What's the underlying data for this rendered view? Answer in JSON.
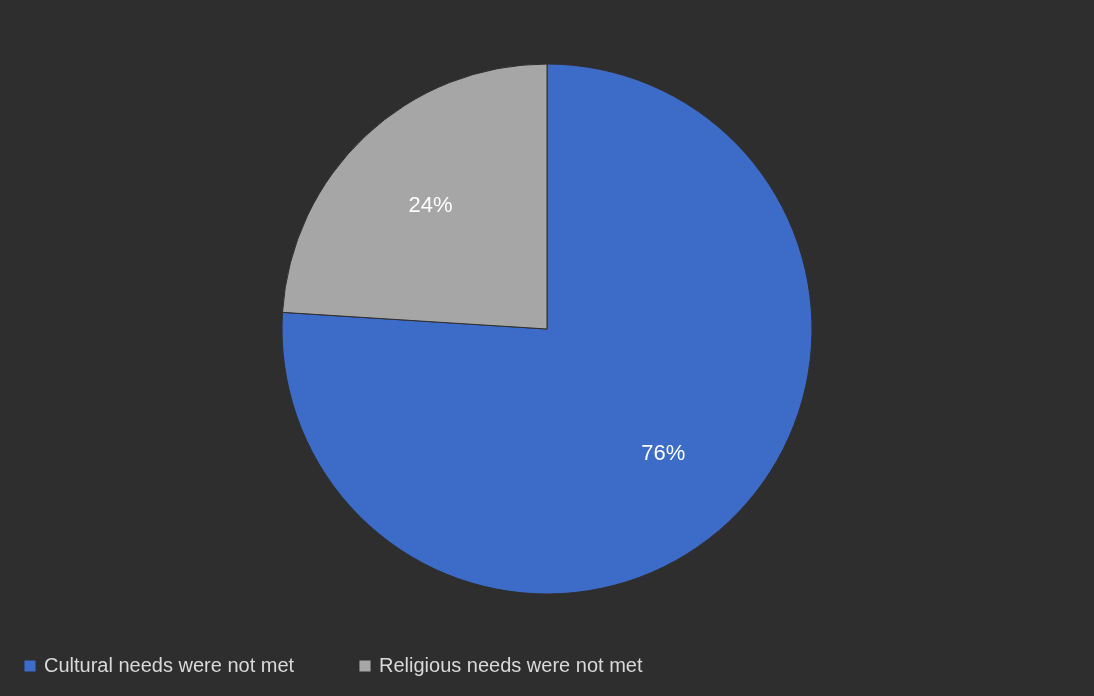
{
  "chart_data": {
    "type": "pie",
    "categories": [
      "Cultural needs were not met",
      "Religious needs were not met"
    ],
    "values": [
      76,
      24
    ],
    "colors": [
      "#3d6bc8",
      "#a6a6a6"
    ],
    "value_labels": [
      "76%",
      "24%"
    ],
    "legend": "bottom"
  }
}
